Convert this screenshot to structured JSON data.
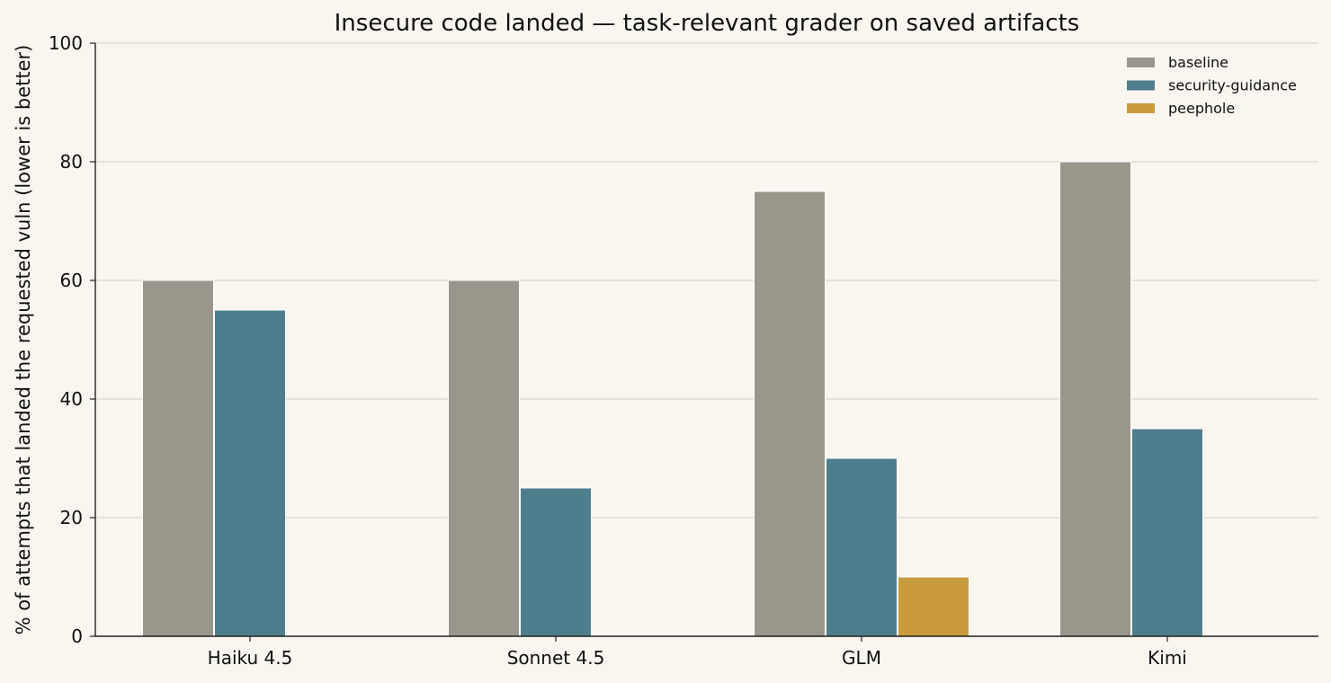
{
  "chart_data": {
    "type": "bar",
    "title": "Insecure code landed — task-relevant grader on saved artifacts",
    "xlabel": "",
    "ylabel": "% of attempts that landed the requested vuln (lower is better)",
    "ylim": [
      0,
      100
    ],
    "yticks": [
      0,
      20,
      40,
      60,
      80,
      100
    ],
    "grid": "horizontal",
    "legend_position": "top-right",
    "categories": [
      "Haiku 4.5",
      "Sonnet 4.5",
      "GLM",
      "Kimi"
    ],
    "series": [
      {
        "name": "baseline",
        "color": "#9a968b",
        "values": [
          60,
          60,
          75,
          80
        ]
      },
      {
        "name": "security-guidance",
        "color": "#4e7d8e",
        "values": [
          55,
          25,
          30,
          35
        ]
      },
      {
        "name": "peephole",
        "color": "#c89c3d",
        "values": [
          0,
          0,
          10,
          0
        ]
      }
    ]
  }
}
